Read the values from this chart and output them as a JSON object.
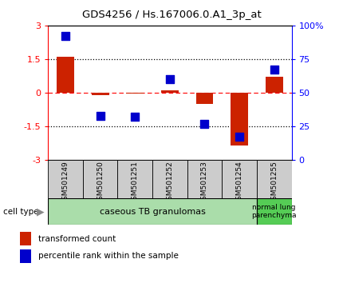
{
  "title": "GDS4256 / Hs.167006.0.A1_3p_at",
  "samples": [
    "GSM501249",
    "GSM501250",
    "GSM501251",
    "GSM501252",
    "GSM501253",
    "GSM501254",
    "GSM501255"
  ],
  "transformed_count": [
    1.6,
    -0.12,
    -0.05,
    0.1,
    -0.5,
    -2.35,
    0.7
  ],
  "percentile_rank": [
    92,
    33,
    32,
    60,
    27,
    17,
    67
  ],
  "ylim_left": [
    -3,
    3
  ],
  "ylim_right": [
    0,
    100
  ],
  "yticks_left": [
    -3,
    -1.5,
    0,
    1.5,
    3
  ],
  "yticks_right": [
    0,
    25,
    50,
    75,
    100
  ],
  "ytick_labels_left": [
    "-3",
    "-1.5",
    "0",
    "1.5",
    "3"
  ],
  "ytick_labels_right": [
    "0",
    "25",
    "50",
    "75",
    "100%"
  ],
  "cell_type_label": "cell type",
  "group1_label": "caseous TB granulomas",
  "group2_label": "normal lung\nparenchyma",
  "group1_samples": [
    0,
    1,
    2,
    3,
    4,
    5
  ],
  "group2_samples": [
    6
  ],
  "bar_color": "#cc2200",
  "dot_color": "#0000cc",
  "bar_width": 0.5,
  "dot_size": 45,
  "legend_bar_label": "transformed count",
  "legend_dot_label": "percentile rank within the sample",
  "bg_color_plot": "#ffffff",
  "xtick_bg": "#cccccc",
  "group1_bg": "#aaddaa",
  "group2_bg": "#55cc55",
  "arrow_color": "#888888",
  "title_fontsize": 9.5,
  "axis_fontsize": 8,
  "xtick_fontsize": 6.5,
  "group_fontsize": 8,
  "legend_fontsize": 7.5
}
